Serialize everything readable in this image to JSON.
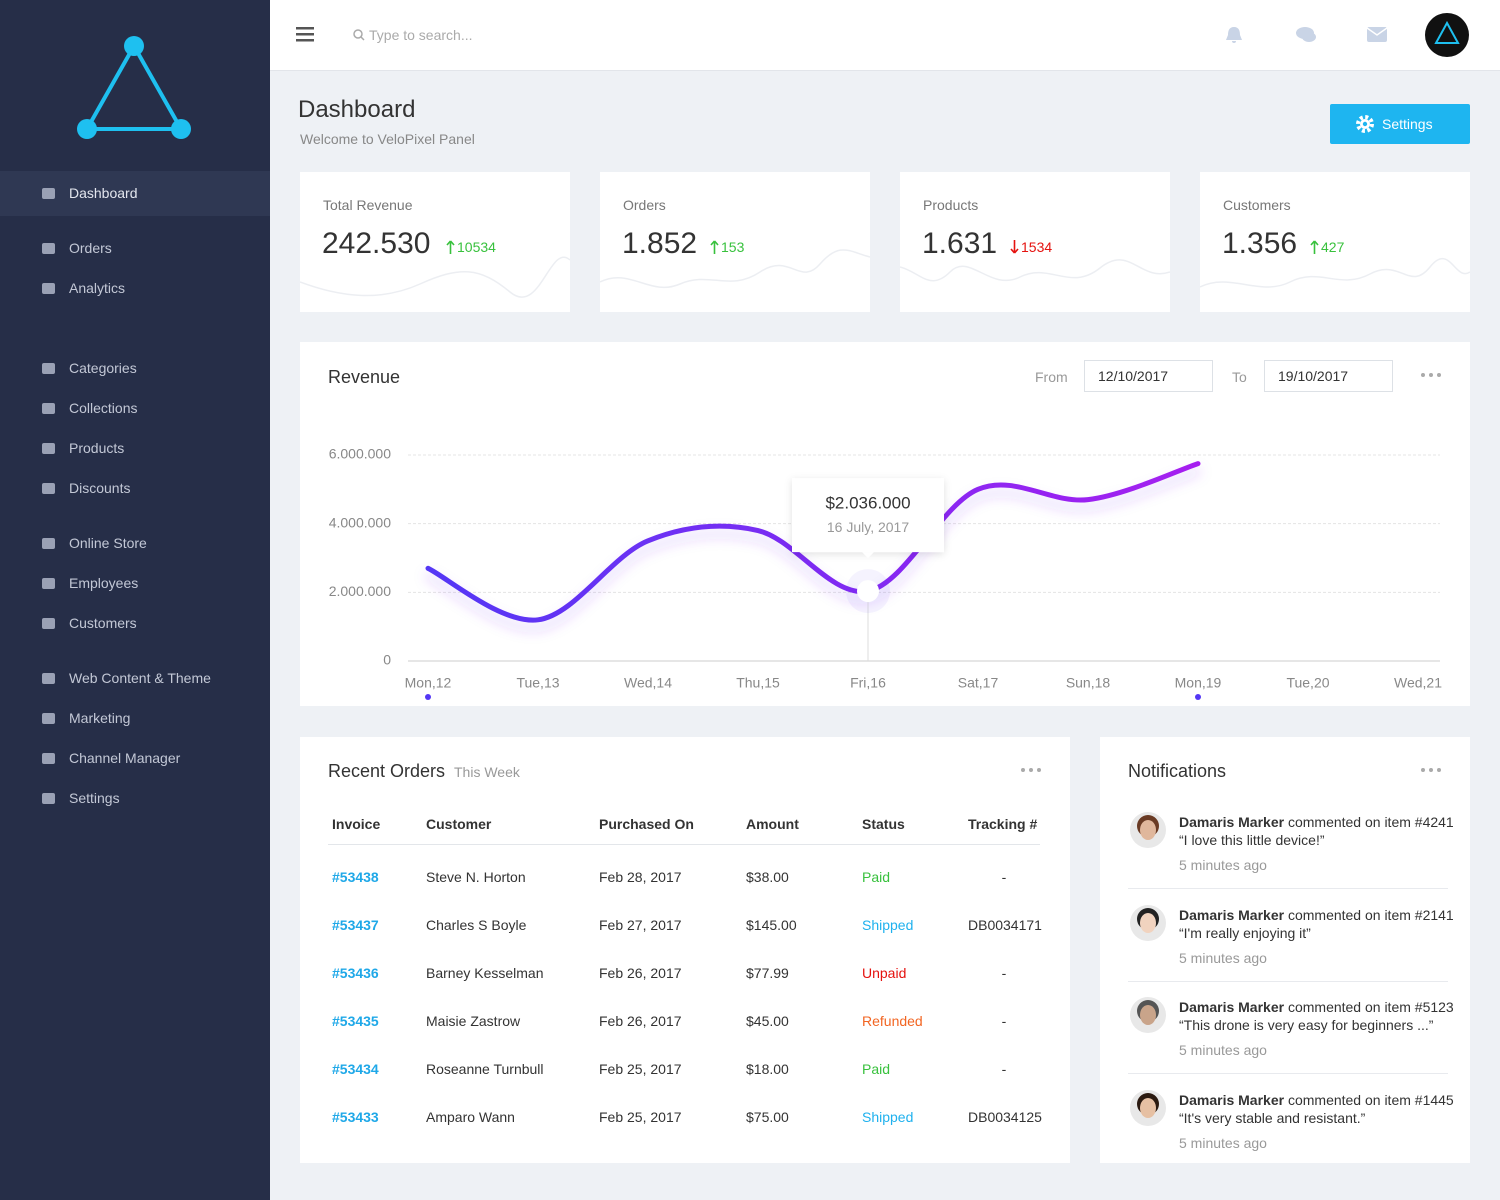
{
  "topbar": {
    "search_placeholder": "Type to search..."
  },
  "header": {
    "title": "Dashboard",
    "subtitle": "Welcome to VeloPixel Panel",
    "button": "Settings"
  },
  "nav": [
    [
      "Dashboard"
    ],
    [
      "Orders",
      "Analytics"
    ],
    [
      "Categories",
      "Collections",
      "Products",
      "Discounts"
    ],
    [
      "Online Store",
      "Employees",
      "Customers"
    ],
    [
      "Web Content & Theme",
      "Marketing",
      "Channel Manager",
      "Settings"
    ]
  ],
  "stats": [
    {
      "label": "Total Revenue",
      "value": "242.530",
      "change": "10534",
      "trend": "up"
    },
    {
      "label": "Orders",
      "value": "1.852",
      "change": "153",
      "trend": "up"
    },
    {
      "label": "Products",
      "value": "1.631",
      "change": "1534",
      "trend": "down"
    },
    {
      "label": "Customers",
      "value": "1.356",
      "change": "427",
      "trend": "up"
    }
  ],
  "revenue": {
    "title": "Revenue",
    "from_label": "From",
    "from": "12/10/2017",
    "to_label": "To",
    "to": "19/10/2017"
  },
  "chart_data": {
    "type": "line",
    "categories": [
      "Mon,12",
      "Tue,13",
      "Wed,14",
      "Thu,15",
      "Fri,16",
      "Sat,17",
      "Sun,18",
      "Mon,19",
      "Tue,20",
      "Wed,21"
    ],
    "values": [
      2700000,
      1200000,
      3500000,
      3800000,
      2036000,
      5000000,
      4700000,
      5750000,
      null,
      null
    ],
    "value_labels": [
      null,
      null,
      null,
      null,
      "$2.036.000",
      null,
      null,
      null,
      null,
      null
    ],
    "tooltip_date": "16 July, 2017",
    "colors": [
      "#5437f5",
      "#a61ff0"
    ],
    "ylim": [
      0,
      6000000
    ],
    "yticks": [
      0,
      {
        "value": 2000000,
        "label": "2.000.000"
      },
      {
        "value": 4000000,
        "label": "4.000.000"
      },
      {
        "value": 6000000,
        "label": "6.000.000"
      }
    ],
    "grid": true
  },
  "orders": {
    "title": "Recent Orders",
    "subtitle": "This Week",
    "columns": [
      "Invoice",
      "Customer",
      "Purchased On",
      "Amount",
      "Status",
      "Tracking #"
    ],
    "rows": [
      [
        "#53438",
        "Steve N. Horton",
        "Feb 28, 2017",
        "$38.00",
        "Paid",
        "-"
      ],
      [
        "#53437",
        "Charles S Boyle",
        "Feb 27, 2017",
        "$145.00",
        "Shipped",
        "DB0034171"
      ],
      [
        "#53436",
        "Barney Kesselman",
        "Feb 26, 2017",
        "$77.99",
        "Unpaid",
        "-"
      ],
      [
        "#53435",
        "Maisie Zastrow",
        "Feb 26, 2017",
        "$45.00",
        "Refunded",
        "-"
      ],
      [
        "#53434",
        "Roseanne Turnbull",
        "Feb 25, 2017",
        "$18.00",
        "Paid",
        "-"
      ],
      [
        "#53433",
        "Amparo Wann",
        "Feb 25, 2017",
        "$75.00",
        "Shipped",
        "DB0034125"
      ]
    ],
    "status_colors": [
      "#38c13d",
      "#1fb1ee",
      "#e5120f",
      "#f26522",
      "#38c13d",
      "#1fb1ee"
    ]
  },
  "notifications": {
    "title": "Notifications",
    "items": [
      {
        "name": "Damaris Marker",
        "text": " commented on item #4241",
        "quote": "“I love this little device!”",
        "time": "5 minutes ago"
      },
      {
        "name": "Damaris Marker",
        "text": " commented on item #2141",
        "quote": "“I'm really enjoying it”",
        "time": "5 minutes ago"
      },
      {
        "name": "Damaris Marker",
        "text": " commented on item #5123",
        "quote": "“This drone is very easy for beginners ...”",
        "time": "5 minutes ago"
      },
      {
        "name": "Damaris Marker",
        "text": " commented on item #1445",
        "quote": "“It's very stable and resistant.”",
        "time": "5 minutes ago"
      }
    ]
  }
}
